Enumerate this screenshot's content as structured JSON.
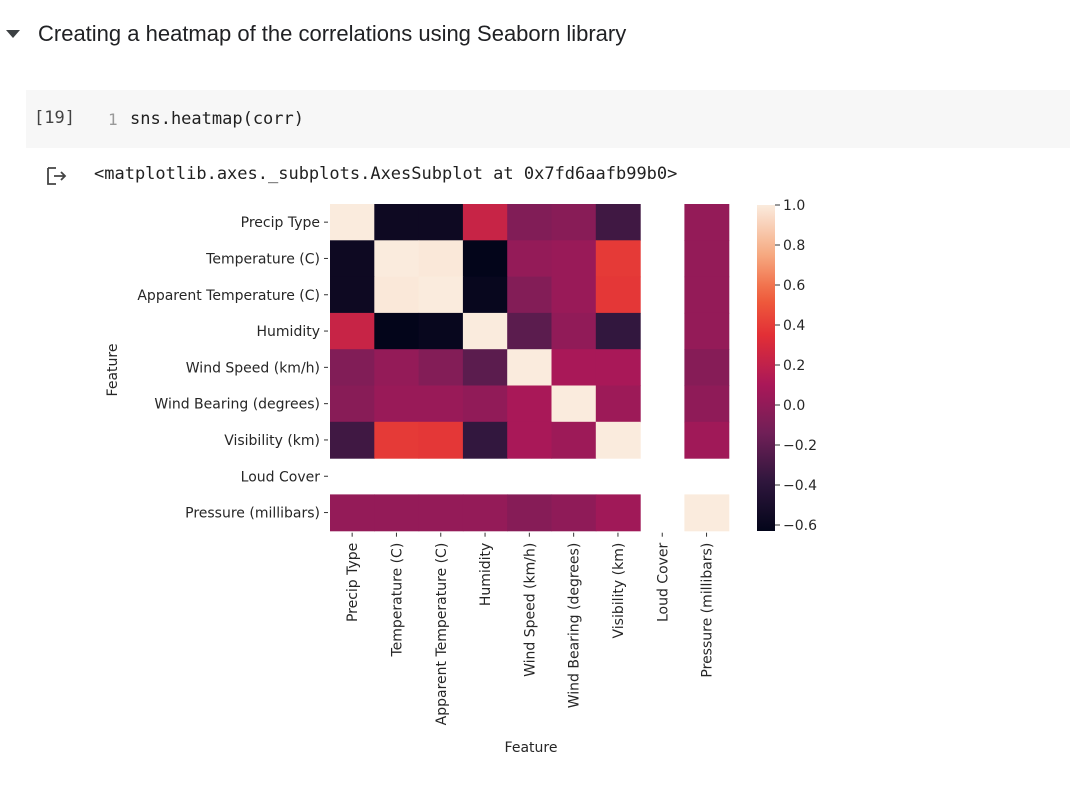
{
  "section": {
    "title": "Creating a heatmap of the correlations using Seaborn library"
  },
  "cell": {
    "exec_count": "[19]",
    "line_number": "1",
    "code": "sns.heatmap(corr)"
  },
  "output": {
    "text": "<matplotlib.axes._subplots.AxesSubplot at 0x7fd6aafb99b0>"
  },
  "chart_data": {
    "type": "heatmap",
    "rows": [
      "Precip Type",
      "Temperature (C)",
      "Apparent Temperature (C)",
      "Humidity",
      "Wind Speed (km/h)",
      "Wind Bearing (degrees)",
      "Visibility (km)",
      "Loud Cover",
      "Pressure (millibars)"
    ],
    "columns": [
      "Precip Type",
      "Temperature (C)",
      "Apparent Temperature (C)",
      "Humidity",
      "Wind Speed (km/h)",
      "Wind Bearing (degrees)",
      "Visibility (km)",
      "Loud Cover",
      "Pressure (millibars)"
    ],
    "values": [
      [
        1.0,
        -0.57,
        -0.57,
        0.23,
        -0.07,
        -0.04,
        -0.32,
        null,
        0.01
      ],
      [
        -0.57,
        1.0,
        0.99,
        -0.63,
        0.01,
        0.03,
        0.39,
        null,
        0.01
      ],
      [
        -0.57,
        0.99,
        1.0,
        -0.6,
        -0.06,
        0.03,
        0.38,
        null,
        0.01
      ],
      [
        0.23,
        -0.63,
        -0.6,
        1.0,
        -0.22,
        0.0,
        -0.37,
        null,
        0.01
      ],
      [
        -0.07,
        0.01,
        -0.06,
        -0.22,
        1.0,
        0.1,
        0.1,
        null,
        -0.05
      ],
      [
        -0.04,
        0.03,
        0.03,
        0.0,
        0.1,
        1.0,
        0.05,
        null,
        -0.01
      ],
      [
        -0.32,
        0.39,
        0.38,
        -0.37,
        0.1,
        0.05,
        1.0,
        null,
        0.06
      ],
      [
        null,
        null,
        null,
        null,
        null,
        null,
        null,
        null,
        null
      ],
      [
        0.01,
        0.01,
        0.01,
        0.01,
        -0.05,
        -0.01,
        0.06,
        null,
        1.0
      ]
    ],
    "xlabel": "Feature",
    "ylabel": "Feature",
    "vmin": -0.63,
    "vmax": 1.0,
    "colorbar_ticks": [
      1.0,
      0.8,
      0.6,
      0.4,
      0.2,
      0.0,
      -0.2,
      -0.4,
      -0.6
    ],
    "colorbar_tick_labels": [
      "1.0",
      "0.8",
      "0.6",
      "0.4",
      "0.2",
      "0.0",
      "−0.2",
      "−0.4",
      "−0.6"
    ],
    "colormap": "rocket"
  }
}
